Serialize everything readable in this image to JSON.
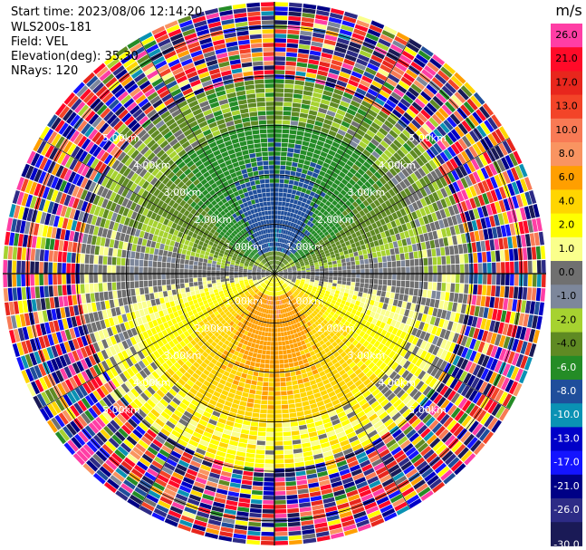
{
  "chart_data": {
    "type": "ppi",
    "title_lines": {
      "start_time": "Start time: 2023/08/06 12:14:20",
      "instrument": "WLS200s-181",
      "field": "Field: VEL",
      "elevation": "Elevation(deg): 35.30",
      "nrays": "NRays: 120"
    },
    "nrays": 120,
    "range_rings_km": [
      1,
      2,
      3,
      4,
      5
    ],
    "ring_labels": [
      "1.00km",
      "2.00km",
      "3.00km",
      "4.00km",
      "5.00km"
    ],
    "colorbar": {
      "unit": "m/s",
      "ticks": [
        "26.0",
        "21.0",
        "17.0",
        "13.0",
        "10.0",
        "8.0",
        "6.0",
        "4.0",
        "2.0",
        "1.0",
        "0.0",
        "-1.0",
        "-2.0",
        "-4.0",
        "-6.0",
        "-8.0",
        "-10.0",
        "-13.0",
        "-17.0",
        "-21.0",
        "-26.0",
        "-30.0"
      ],
      "colors": [
        "#ff3ea5",
        "#ff0a28",
        "#e8261d",
        "#f34428",
        "#f87a55",
        "#f99461",
        "#ff9f00",
        "#ffd500",
        "#ffff00",
        "#faff8c",
        "#707070",
        "#7d879b",
        "#a6d230",
        "#5f8a23",
        "#248c26",
        "#1f4e9b",
        "#0a92b4",
        "#0000c8",
        "#1414ff",
        "#000086",
        "#2d2b86",
        "#1a1a56"
      ]
    }
  }
}
